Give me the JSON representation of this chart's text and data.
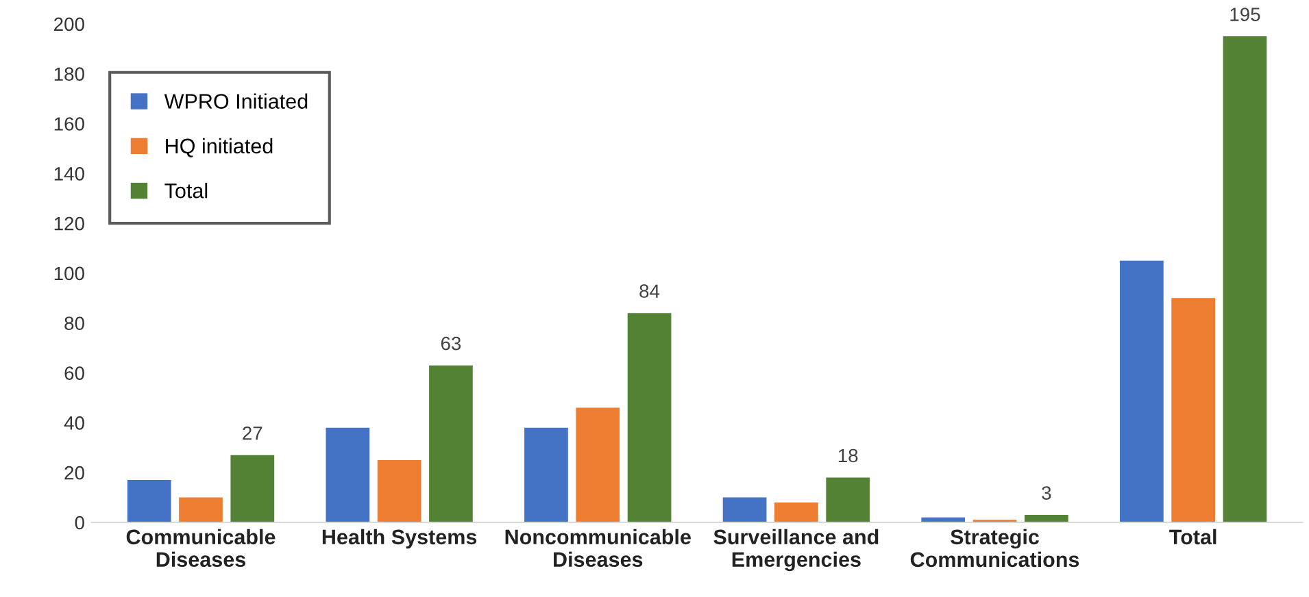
{
  "chart_data": {
    "type": "bar",
    "categories": [
      "Communicable\nDiseases",
      "Health Systems",
      "Noncommunicable\nDiseases",
      "Surveillance and\nEmergencies",
      "Strategic\nCommunications",
      "Total"
    ],
    "series": [
      {
        "name": "WPRO Initiated",
        "color": "#4472c4",
        "values": [
          17,
          38,
          38,
          10,
          2,
          105
        ]
      },
      {
        "name": "HQ initiated",
        "color": "#ed7d31",
        "values": [
          10,
          25,
          46,
          8,
          1,
          90
        ]
      },
      {
        "name": "Total",
        "color": "#548235",
        "values": [
          27,
          63,
          84,
          18,
          3,
          195
        ],
        "value_labels": [
          "27",
          "63",
          "84",
          "18",
          "3",
          "195"
        ]
      }
    ],
    "ylim": [
      0,
      200
    ],
    "yticks": [
      0,
      20,
      40,
      60,
      80,
      100,
      120,
      140,
      160,
      180,
      200
    ],
    "grid": false,
    "legend": "top left"
  }
}
